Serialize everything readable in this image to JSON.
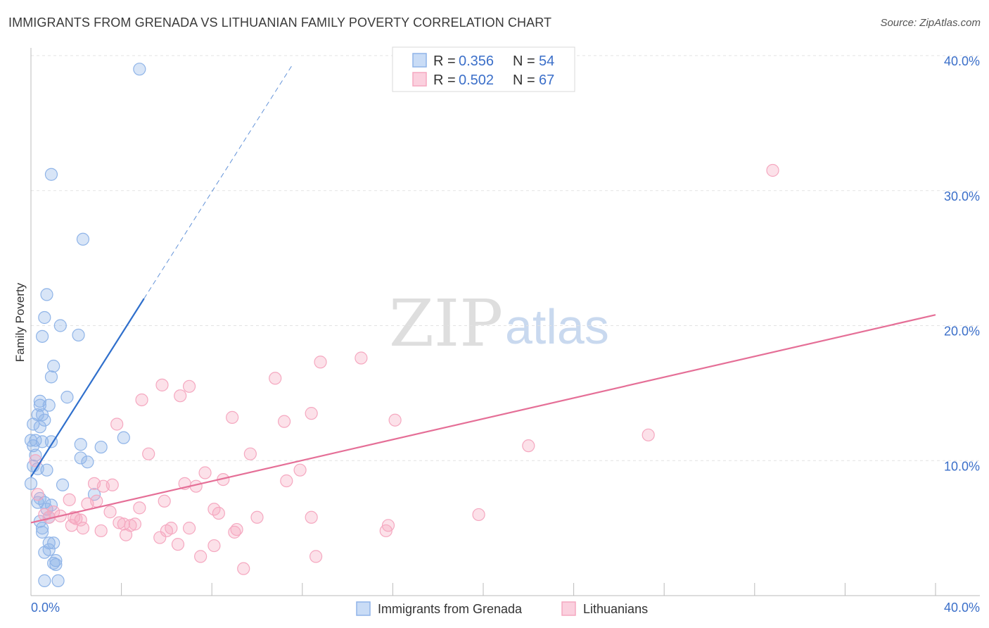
{
  "title": "IMMIGRANTS FROM GRENADA VS LITHUANIAN FAMILY POVERTY CORRELATION CHART",
  "source": "Source: ZipAtlas.com",
  "watermark": {
    "zip": "ZIP",
    "atlas": "atlas"
  },
  "chart_data": {
    "type": "scatter",
    "xlabel": "",
    "ylabel": "Family Poverty",
    "xlim": [
      0,
      40
    ],
    "ylim": [
      0,
      40
    ],
    "x_tick_labels": [
      "0.0%",
      "40.0%"
    ],
    "y_ticks": [
      10,
      20,
      30,
      40
    ],
    "y_tick_labels": [
      "10.0%",
      "20.0%",
      "30.0%",
      "40.0%"
    ],
    "grid": true,
    "legend_stats": [
      {
        "r_label": "R = ",
        "r_value": "0.356",
        "n_label": "N = ",
        "n_value": "54"
      },
      {
        "r_label": "R = ",
        "r_value": "0.502",
        "n_label": "N = ",
        "n_value": "67"
      }
    ],
    "series": [
      {
        "name": "Immigrants from Grenada",
        "color": "#8fb4e8",
        "line_color": "#2f6fcc",
        "trend": {
          "x0": 0.0,
          "y0": 8.8,
          "x1": 5.0,
          "y1": 22.0,
          "dash_to_x": 11.6
        },
        "points": [
          [
            4.8,
            39.0
          ],
          [
            0.9,
            31.2
          ],
          [
            2.3,
            26.4
          ],
          [
            0.7,
            22.3
          ],
          [
            0.6,
            20.6
          ],
          [
            1.3,
            20.0
          ],
          [
            2.1,
            19.3
          ],
          [
            0.5,
            19.2
          ],
          [
            1.0,
            17.0
          ],
          [
            0.9,
            16.2
          ],
          [
            1.6,
            14.7
          ],
          [
            0.4,
            14.4
          ],
          [
            0.4,
            14.1
          ],
          [
            0.8,
            14.1
          ],
          [
            0.3,
            13.4
          ],
          [
            0.5,
            13.4
          ],
          [
            0.6,
            13.0
          ],
          [
            0.1,
            12.7
          ],
          [
            0.4,
            12.5
          ],
          [
            0.0,
            11.5
          ],
          [
            0.2,
            11.5
          ],
          [
            0.5,
            11.4
          ],
          [
            0.9,
            11.4
          ],
          [
            0.1,
            11.1
          ],
          [
            2.2,
            11.2
          ],
          [
            3.1,
            11.0
          ],
          [
            4.1,
            11.7
          ],
          [
            2.2,
            10.2
          ],
          [
            2.5,
            9.9
          ],
          [
            0.1,
            9.6
          ],
          [
            0.3,
            9.4
          ],
          [
            0.7,
            9.3
          ],
          [
            1.4,
            8.2
          ],
          [
            0.0,
            8.3
          ],
          [
            0.4,
            7.2
          ],
          [
            2.8,
            7.5
          ],
          [
            0.3,
            6.9
          ],
          [
            0.6,
            6.9
          ],
          [
            0.9,
            6.7
          ],
          [
            0.7,
            6.4
          ],
          [
            0.8,
            5.8
          ],
          [
            0.4,
            5.5
          ],
          [
            0.5,
            5.0
          ],
          [
            0.5,
            4.7
          ],
          [
            1.0,
            3.9
          ],
          [
            0.8,
            3.9
          ],
          [
            0.8,
            3.4
          ],
          [
            0.6,
            3.2
          ],
          [
            1.0,
            2.4
          ],
          [
            1.1,
            2.6
          ],
          [
            1.1,
            2.3
          ],
          [
            0.6,
            1.1
          ],
          [
            1.2,
            1.1
          ],
          [
            0.2,
            10.4
          ]
        ]
      },
      {
        "name": "Lithuanians",
        "color": "#f5a8c0",
        "line_color": "#e56f97",
        "trend": {
          "x0": 0.0,
          "y0": 5.4,
          "x1": 40.0,
          "y1": 20.8
        },
        "points": [
          [
            32.8,
            31.5
          ],
          [
            14.6,
            17.6
          ],
          [
            12.8,
            17.3
          ],
          [
            10.8,
            16.1
          ],
          [
            7.0,
            15.5
          ],
          [
            5.8,
            15.6
          ],
          [
            6.6,
            14.8
          ],
          [
            4.9,
            14.5
          ],
          [
            12.4,
            13.5
          ],
          [
            16.1,
            13.0
          ],
          [
            11.2,
            12.9
          ],
          [
            8.9,
            13.2
          ],
          [
            3.8,
            12.7
          ],
          [
            27.3,
            11.9
          ],
          [
            22.0,
            11.1
          ],
          [
            9.7,
            10.5
          ],
          [
            5.2,
            10.5
          ],
          [
            0.2,
            10.0
          ],
          [
            7.7,
            9.1
          ],
          [
            11.9,
            9.3
          ],
          [
            2.8,
            8.3
          ],
          [
            3.6,
            8.2
          ],
          [
            3.2,
            8.1
          ],
          [
            6.8,
            8.3
          ],
          [
            7.3,
            8.1
          ],
          [
            8.5,
            8.6
          ],
          [
            11.3,
            8.5
          ],
          [
            0.3,
            7.5
          ],
          [
            1.7,
            7.1
          ],
          [
            5.9,
            7.0
          ],
          [
            2.9,
            7.0
          ],
          [
            2.5,
            6.8
          ],
          [
            4.8,
            6.5
          ],
          [
            8.1,
            6.4
          ],
          [
            8.3,
            6.1
          ],
          [
            3.5,
            6.2
          ],
          [
            10.0,
            5.8
          ],
          [
            12.4,
            5.8
          ],
          [
            19.8,
            6.0
          ],
          [
            1.0,
            6.2
          ],
          [
            0.8,
            5.8
          ],
          [
            1.3,
            5.9
          ],
          [
            1.9,
            5.8
          ],
          [
            2.2,
            5.6
          ],
          [
            4.6,
            5.3
          ],
          [
            4.4,
            5.2
          ],
          [
            4.1,
            5.3
          ],
          [
            3.9,
            5.4
          ],
          [
            1.8,
            5.2
          ],
          [
            2.3,
            5.0
          ],
          [
            3.1,
            4.8
          ],
          [
            6.2,
            5.0
          ],
          [
            6.0,
            4.8
          ],
          [
            7.0,
            5.0
          ],
          [
            9.1,
            4.9
          ],
          [
            9.0,
            4.7
          ],
          [
            15.8,
            5.2
          ],
          [
            15.7,
            4.8
          ],
          [
            4.2,
            4.5
          ],
          [
            5.7,
            4.3
          ],
          [
            6.5,
            3.8
          ],
          [
            8.1,
            3.7
          ],
          [
            7.5,
            2.9
          ],
          [
            12.6,
            2.9
          ],
          [
            9.4,
            2.0
          ],
          [
            0.6,
            6.0
          ],
          [
            2.0,
            5.7
          ]
        ]
      }
    ]
  }
}
